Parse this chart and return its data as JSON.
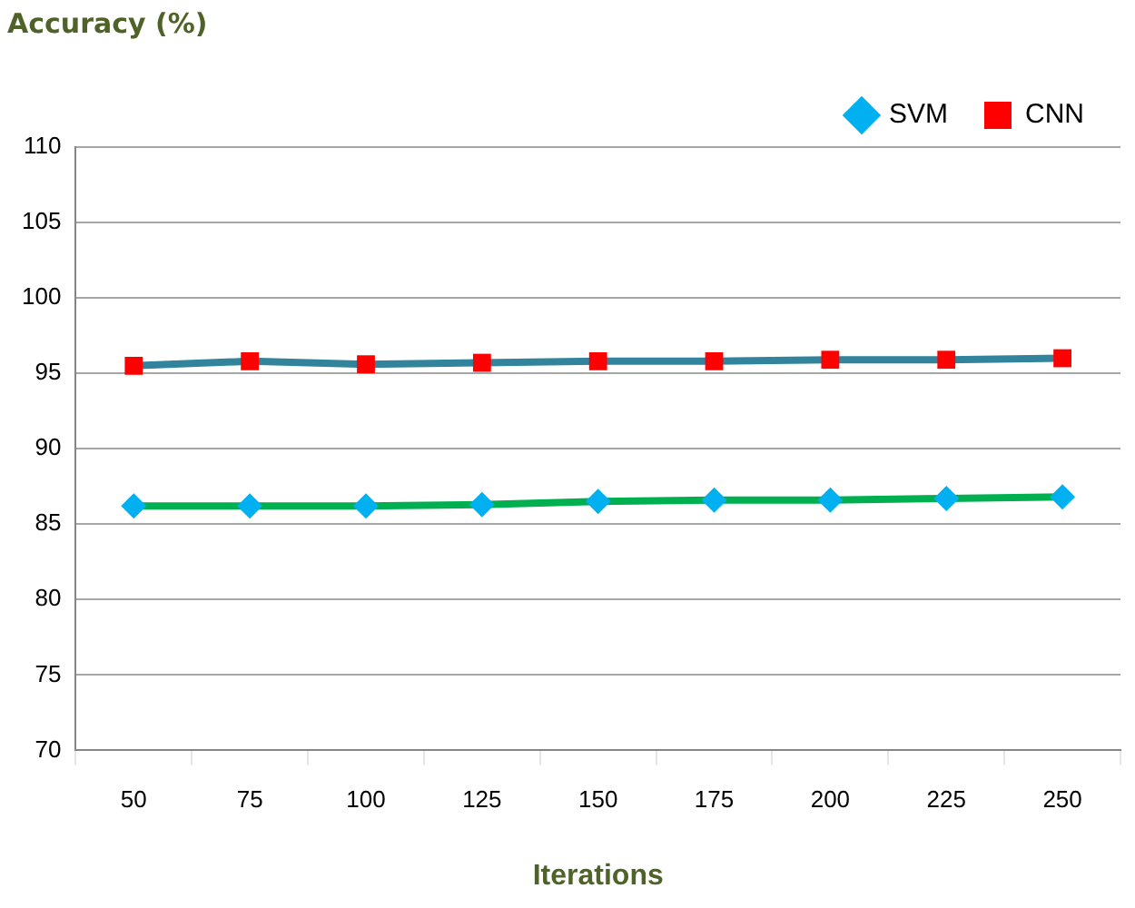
{
  "chart_data": {
    "type": "line",
    "xlabel": "Iterations",
    "ylabel": "Accuracy (%)",
    "categories": [
      "50",
      "75",
      "100",
      "125",
      "150",
      "175",
      "200",
      "225",
      "250"
    ],
    "series": [
      {
        "name": "SVM",
        "color": "#00b050",
        "marker": "diamond",
        "colors": [
          "#00b0f0",
          "#00b0f0",
          "#00b0f0",
          "#00b0f0",
          "#00b0f0",
          "#00b0f0",
          "#00b0f0",
          "#00b0f0",
          "#00b0f0"
        ],
        "values": [
          86.2,
          86.2,
          86.2,
          86.3,
          86.5,
          86.6,
          86.6,
          86.7,
          86.8
        ]
      },
      {
        "name": "CNN",
        "color": "#31849b",
        "marker": "square",
        "colors": [
          "#ff0000",
          "#ff0000",
          "#ff0000",
          "#ff0000",
          "#ff0000",
          "#ff0000",
          "#ff0000",
          "#ff0000",
          "#ff0000"
        ],
        "values": [
          95.5,
          95.8,
          95.6,
          95.7,
          95.8,
          95.8,
          95.9,
          95.9,
          96.0
        ]
      }
    ],
    "ylim": [
      70,
      110
    ],
    "yticks": [
      70,
      75,
      80,
      85,
      90,
      95,
      100,
      105,
      110
    ],
    "grid": "y",
    "legend": "top right"
  }
}
